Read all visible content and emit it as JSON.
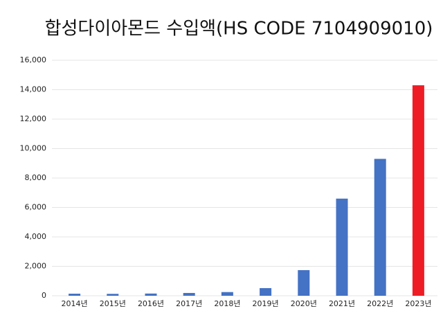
{
  "chart_data": {
    "type": "bar",
    "title": "합성다이아몬드 수입액(HS CODE 7104909010)",
    "categories": [
      "2014년",
      "2015년",
      "2016년",
      "2017년",
      "2018년",
      "2019년",
      "2020년",
      "2021년",
      "2022년",
      "2023년"
    ],
    "values": [
      140,
      130,
      150,
      190,
      250,
      520,
      1740,
      6600,
      9300,
      14300
    ],
    "colors": [
      "#4472c4",
      "#4472c4",
      "#4472c4",
      "#4472c4",
      "#4472c4",
      "#4472c4",
      "#4472c4",
      "#4472c4",
      "#4472c4",
      "#ee1c25"
    ],
    "ylim": [
      0,
      16000
    ],
    "yticks": [
      0,
      {
        "value": 2000,
        "label": "2,000"
      },
      {
        "value": 4000,
        "label": "4,000"
      },
      {
        "value": 6000,
        "label": "6,000"
      },
      {
        "value": 8000,
        "label": "8,000"
      },
      {
        "value": 10000,
        "label": "10,000"
      },
      {
        "value": 12000,
        "label": "12,000"
      },
      {
        "value": 14000,
        "label": "14,000"
      },
      {
        "value": 16000,
        "label": "16,000"
      }
    ],
    "grid": true
  }
}
